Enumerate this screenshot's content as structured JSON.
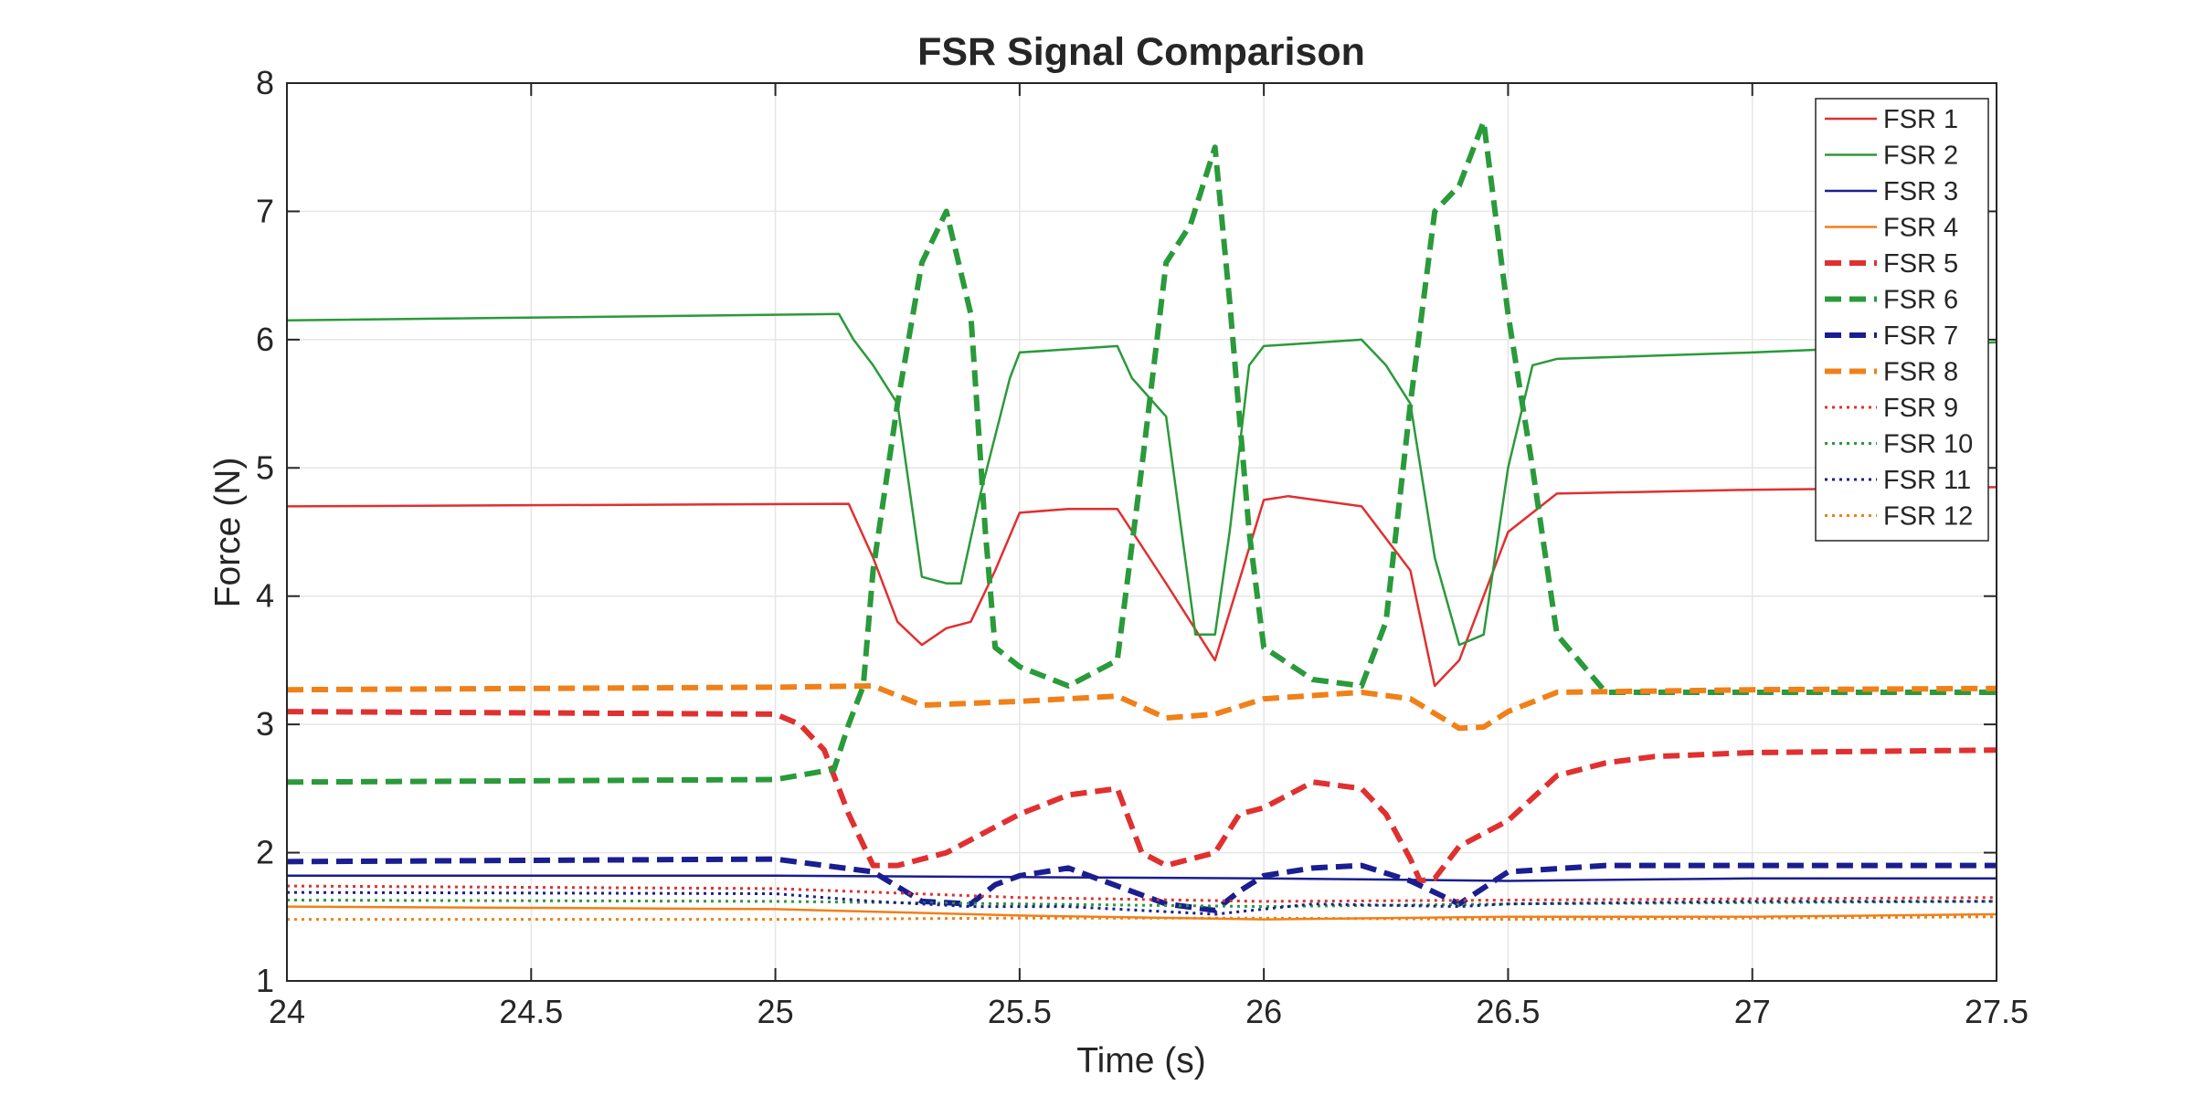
{
  "chart_data": {
    "type": "line",
    "title": "FSR Signal Comparison",
    "xlabel": "Time (s)",
    "ylabel": "Force (N)",
    "xlim": [
      24,
      27.5
    ],
    "ylim": [
      1,
      8
    ],
    "xticks": [
      24,
      24.5,
      25,
      25.5,
      26,
      26.5,
      27,
      27.5
    ],
    "xtick_labels": [
      "24",
      "24.5",
      "25",
      "25.5",
      "26",
      "26.5",
      "27",
      "27.5"
    ],
    "yticks": [
      1,
      2,
      3,
      4,
      5,
      6,
      7,
      8
    ],
    "ytick_labels": [
      "1",
      "2",
      "3",
      "4",
      "5",
      "6",
      "7",
      "8"
    ],
    "grid": true,
    "legend_position": "top-right",
    "series": [
      {
        "name": "FSR 1",
        "color": "#e03030",
        "style": "solid",
        "x": [
          24,
          25.15,
          25.2,
          25.25,
          25.3,
          25.35,
          25.4,
          25.45,
          25.5,
          25.6,
          25.7,
          25.8,
          25.9,
          26,
          26.05,
          26.2,
          26.3,
          26.35,
          26.4,
          26.45,
          26.5,
          26.6,
          27,
          27.5
        ],
        "y": [
          4.7,
          4.72,
          4.3,
          3.8,
          3.62,
          3.75,
          3.8,
          4.2,
          4.65,
          4.68,
          4.68,
          4.1,
          3.5,
          4.75,
          4.78,
          4.7,
          4.2,
          3.3,
          3.5,
          4,
          4.5,
          4.8,
          4.83,
          4.85
        ]
      },
      {
        "name": "FSR 2",
        "color": "#2a9a3a",
        "style": "solid",
        "x": [
          24,
          25.13,
          25.16,
          25.2,
          25.25,
          25.3,
          25.35,
          25.38,
          25.42,
          25.48,
          25.5,
          25.7,
          25.73,
          25.8,
          25.86,
          25.9,
          25.93,
          25.97,
          26,
          26.2,
          26.25,
          26.3,
          26.35,
          26.4,
          26.45,
          26.5,
          26.55,
          26.6,
          27,
          27.5
        ],
        "y": [
          6.15,
          6.2,
          6.0,
          5.8,
          5.5,
          4.15,
          4.1,
          4.1,
          4.8,
          5.7,
          5.9,
          5.95,
          5.7,
          5.4,
          3.7,
          3.7,
          4.5,
          5.8,
          5.95,
          6.0,
          5.8,
          5.5,
          4.3,
          3.62,
          3.7,
          5.0,
          5.8,
          5.85,
          5.9,
          5.98
        ]
      },
      {
        "name": "FSR 3",
        "color": "#1a1e90",
        "style": "solid",
        "x": [
          24,
          25,
          25.5,
          26,
          26.5,
          27,
          27.5
        ],
        "y": [
          1.82,
          1.82,
          1.81,
          1.8,
          1.78,
          1.8,
          1.8
        ]
      },
      {
        "name": "FSR 4",
        "color": "#f08018",
        "style": "solid",
        "x": [
          24,
          25,
          25.5,
          26,
          26.5,
          27,
          27.5
        ],
        "y": [
          1.58,
          1.56,
          1.51,
          1.48,
          1.5,
          1.5,
          1.52
        ]
      },
      {
        "name": "FSR 5",
        "color": "#e03030",
        "style": "dashed",
        "x": [
          24,
          25,
          25.05,
          25.1,
          25.15,
          25.2,
          25.25,
          25.35,
          25.5,
          25.6,
          25.7,
          25.75,
          25.8,
          25.85,
          25.9,
          25.95,
          26,
          26.1,
          26.2,
          26.25,
          26.3,
          26.32,
          26.35,
          26.4,
          26.5,
          26.6,
          26.7,
          26.8,
          27,
          27.5
        ],
        "y": [
          3.1,
          3.08,
          3.0,
          2.8,
          2.3,
          1.9,
          1.9,
          2.0,
          2.3,
          2.45,
          2.5,
          2.0,
          1.9,
          1.95,
          2.0,
          2.3,
          2.35,
          2.55,
          2.5,
          2.3,
          1.95,
          1.78,
          1.8,
          2.05,
          2.25,
          2.6,
          2.7,
          2.75,
          2.78,
          2.8
        ]
      },
      {
        "name": "FSR 6",
        "color": "#2a9a3a",
        "style": "dashed",
        "x": [
          24,
          25,
          25.12,
          25.15,
          25.18,
          25.2,
          25.25,
          25.3,
          25.35,
          25.4,
          25.43,
          25.45,
          25.5,
          25.6,
          25.7,
          25.75,
          25.8,
          25.85,
          25.9,
          25.93,
          25.97,
          26,
          26.1,
          26.2,
          26.25,
          26.3,
          26.35,
          26.4,
          26.45,
          26.5,
          26.55,
          26.6,
          26.7,
          27,
          27.5
        ],
        "y": [
          2.55,
          2.57,
          2.65,
          3.0,
          3.3,
          4.2,
          5.5,
          6.6,
          7.0,
          6.2,
          4.5,
          3.6,
          3.45,
          3.3,
          3.5,
          5.0,
          6.6,
          6.9,
          7.5,
          6.3,
          4.5,
          3.6,
          3.35,
          3.3,
          3.8,
          5.5,
          7.0,
          7.2,
          7.7,
          6.2,
          5.0,
          3.7,
          3.25,
          3.25,
          3.25
        ]
      },
      {
        "name": "FSR 7",
        "color": "#1a1e90",
        "style": "dashed",
        "x": [
          24,
          25,
          25.2,
          25.3,
          25.4,
          25.45,
          25.5,
          25.6,
          25.8,
          25.9,
          25.95,
          26,
          26.1,
          26.2,
          26.3,
          26.4,
          26.5,
          26.7,
          27,
          27.5
        ],
        "y": [
          1.93,
          1.95,
          1.85,
          1.62,
          1.6,
          1.75,
          1.82,
          1.88,
          1.6,
          1.55,
          1.7,
          1.82,
          1.88,
          1.9,
          1.78,
          1.6,
          1.85,
          1.9,
          1.9,
          1.9
        ]
      },
      {
        "name": "FSR 8",
        "color": "#f08018",
        "style": "dashed",
        "x": [
          24,
          25,
          25.2,
          25.3,
          25.5,
          25.7,
          25.8,
          25.9,
          26,
          26.2,
          26.3,
          26.4,
          26.45,
          26.5,
          26.6,
          27,
          27.5
        ],
        "y": [
          3.27,
          3.29,
          3.3,
          3.15,
          3.18,
          3.22,
          3.05,
          3.08,
          3.2,
          3.25,
          3.2,
          2.97,
          2.98,
          3.1,
          3.25,
          3.27,
          3.28
        ]
      },
      {
        "name": "FSR 9",
        "color": "#e03030",
        "style": "dotted",
        "x": [
          24,
          25,
          25.5,
          26,
          26.5,
          27,
          27.5
        ],
        "y": [
          1.74,
          1.72,
          1.65,
          1.62,
          1.63,
          1.64,
          1.65
        ]
      },
      {
        "name": "FSR 10",
        "color": "#2a9a3a",
        "style": "dotted",
        "x": [
          24,
          25,
          25.5,
          26,
          26.5,
          27,
          27.5
        ],
        "y": [
          1.63,
          1.62,
          1.6,
          1.58,
          1.6,
          1.61,
          1.62
        ]
      },
      {
        "name": "FSR 11",
        "color": "#1a1e90",
        "style": "dotted",
        "x": [
          24,
          25,
          25.2,
          25.4,
          25.6,
          25.9,
          26.1,
          26.4,
          26.5,
          27,
          27.5
        ],
        "y": [
          1.69,
          1.68,
          1.62,
          1.58,
          1.58,
          1.52,
          1.6,
          1.58,
          1.6,
          1.62,
          1.62
        ]
      },
      {
        "name": "FSR 12",
        "color": "#f08018",
        "style": "dotted",
        "x": [
          24,
          25,
          25.5,
          26,
          26.5,
          27,
          27.5
        ],
        "y": [
          1.48,
          1.48,
          1.49,
          1.49,
          1.48,
          1.49,
          1.5
        ]
      }
    ]
  }
}
